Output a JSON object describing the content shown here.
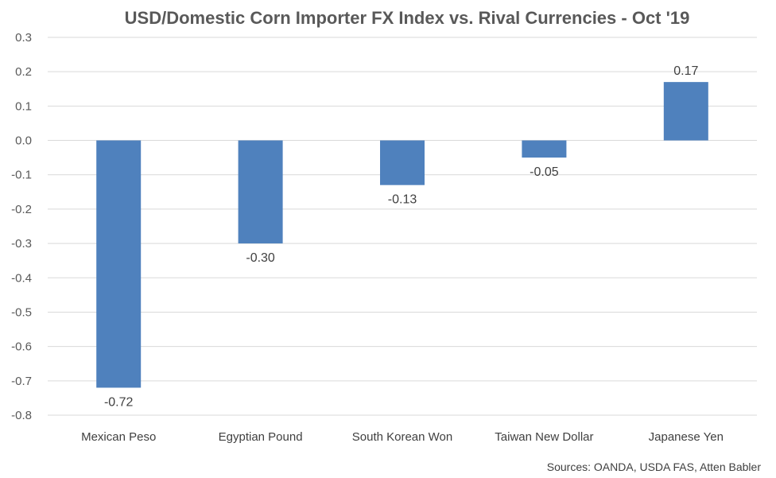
{
  "chart_data": {
    "type": "bar",
    "title": "USD/Domestic Corn Importer FX Index vs. Rival Currencies - Oct '19",
    "categories": [
      "Mexican Peso",
      "Egyptian Pound",
      "South Korean Won",
      "Taiwan New Dollar",
      "Japanese Yen"
    ],
    "values": [
      -0.72,
      -0.3,
      -0.13,
      -0.05,
      0.17
    ],
    "data_labels": [
      "-0.72",
      "-0.30",
      "-0.13",
      "-0.05",
      "0.17"
    ],
    "ylim": [
      -0.8,
      0.3
    ],
    "yticks": [
      "0.3",
      "0.2",
      "0.1",
      "0.0",
      "-0.1",
      "-0.2",
      "-0.3",
      "-0.4",
      "-0.5",
      "-0.6",
      "-0.7",
      "-0.8"
    ],
    "ytick_values": [
      0.3,
      0.2,
      0.1,
      0.0,
      -0.1,
      -0.2,
      -0.3,
      -0.4,
      -0.5,
      -0.6,
      -0.7,
      -0.8
    ],
    "grid": true,
    "legend": "none",
    "bar_color": "#4F81BD",
    "gridline_color": "#D9D9D9",
    "source": "Sources: OANDA, USDA FAS, Atten Babler"
  }
}
